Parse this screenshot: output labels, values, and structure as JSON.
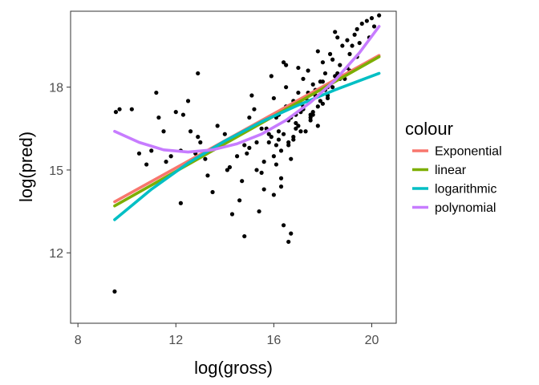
{
  "chart_data": {
    "type": "scatter",
    "xlabel": "log(gross)",
    "ylabel": "log(pred)",
    "xlim": [
      7.7,
      21.0
    ],
    "ylim": [
      9.45,
      20.75
    ],
    "x_ticks": [
      8,
      12,
      16,
      20
    ],
    "y_ticks": [
      12,
      15,
      18
    ],
    "x_tick_labels": [
      "8",
      "12",
      "16",
      "20"
    ],
    "y_tick_labels": [
      "12",
      "15",
      "18"
    ],
    "grid": false,
    "legend": {
      "title": "colour",
      "position": "right",
      "entries": [
        {
          "label": "Exponential",
          "color": "#F8766D"
        },
        {
          "label": "linear",
          "color": "#7CAE00"
        },
        {
          "label": "logarithmic",
          "color": "#00BFC4"
        },
        {
          "label": "polynomial",
          "color": "#C77CFF"
        }
      ]
    },
    "lines": [
      {
        "name": "Exponential",
        "color": "#F8766D",
        "x": [
          9.5,
          20.3
        ],
        "y": [
          13.85,
          19.15
        ]
      },
      {
        "name": "linear",
        "color": "#7CAE00",
        "x": [
          9.5,
          20.3
        ],
        "y": [
          13.7,
          19.1
        ]
      },
      {
        "name": "logarithmic",
        "color": "#00BFC4",
        "x": [
          9.5,
          11,
          12.5,
          14,
          15.5,
          17,
          18.5,
          20.3
        ],
        "y": [
          13.2,
          14.3,
          15.25,
          16.05,
          16.75,
          17.35,
          17.9,
          18.5
        ]
      },
      {
        "name": "polynomial",
        "color": "#C77CFF",
        "x": [
          9.5,
          10.5,
          11.5,
          12.5,
          13.5,
          14.5,
          15.5,
          16.5,
          17.5,
          18.5,
          19.5,
          20.3
        ],
        "y": [
          16.4,
          16.0,
          15.73,
          15.65,
          15.73,
          15.95,
          16.3,
          16.8,
          17.45,
          18.25,
          19.25,
          20.2
        ]
      }
    ],
    "scatter_points": {
      "color": "#000000",
      "x": [
        9.5,
        9.55,
        9.7,
        10.2,
        10.5,
        10.8,
        11.0,
        11.2,
        11.3,
        11.5,
        11.6,
        11.8,
        12.0,
        12.2,
        12.3,
        12.5,
        12.8,
        13.0,
        13.2,
        12.9,
        12.2,
        12.6,
        13.5,
        13.3,
        12.9,
        13.7,
        14.0,
        14.2,
        14.6,
        14.8,
        14.3,
        14.9,
        15.0,
        15.2,
        15.3,
        15.5,
        15.6,
        15.8,
        15.1,
        14.7,
        15.4,
        15.9,
        16.0,
        16.1,
        16.2,
        16.0,
        15.9,
        16.3,
        16.4,
        16.5,
        16.6,
        16.7,
        16.5,
        16.4,
        16.6,
        16.8,
        16.9,
        17.0,
        16.7,
        16.5,
        16.3,
        16.6,
        16.9,
        17.1,
        17.2,
        17.3,
        17.0,
        17.2,
        17.4,
        17.5,
        17.6,
        17.3,
        17.7,
        17.8,
        17.9,
        18.0,
        17.5,
        17.8,
        18.1,
        18.2,
        18.3,
        18.0,
        18.4,
        18.5,
        18.6,
        18.2,
        18.7,
        18.8,
        18.9,
        19.0,
        19.1,
        18.5,
        19.2,
        19.3,
        19.4,
        19.5,
        19.6,
        19.8,
        19.9,
        20.0,
        20.1,
        20.3,
        15.7,
        16.1,
        16.4,
        17.1,
        15.0,
        14.5,
        14.1,
        16.2,
        17.4,
        18.1,
        17.8,
        16.8,
        16.3,
        15.6,
        15.3,
        14.8,
        17.6,
        18.4,
        18.7,
        19.1,
        17.0,
        16.6,
        17.3,
        17.9,
        18.3,
        16.9,
        16.2,
        15.8,
        17.2,
        17.7,
        18.0,
        18.6,
        19.0,
        19.4,
        17.5,
        16.0,
        16.7,
        17.1,
        17.6,
        18.2,
        16.4,
        15.5,
        16.1,
        16.8,
        17.4,
        18.8
      ],
      "y": [
        10.6,
        17.1,
        17.2,
        17.2,
        15.6,
        15.2,
        15.7,
        17.8,
        16.9,
        16.4,
        15.3,
        15.5,
        17.1,
        13.8,
        17.0,
        17.5,
        15.6,
        16.0,
        15.4,
        18.5,
        15.7,
        16.4,
        14.2,
        14.8,
        16.2,
        16.6,
        16.3,
        15.1,
        13.9,
        12.6,
        13.4,
        15.6,
        16.9,
        17.2,
        15.0,
        16.5,
        14.3,
        16.0,
        17.7,
        14.6,
        13.5,
        16.2,
        17.6,
        15.9,
        17.0,
        14.1,
        18.4,
        14.7,
        16.3,
        17.3,
        16.8,
        15.4,
        18.0,
        13.0,
        12.4,
        17.5,
        16.5,
        17.8,
        12.7,
        18.8,
        14.4,
        15.9,
        16.7,
        17.1,
        18.3,
        16.4,
        18.7,
        17.2,
        18.6,
        16.9,
        18.1,
        17.6,
        17.9,
        16.6,
        18.2,
        18.9,
        17.0,
        19.3,
        18.5,
        18.0,
        19.2,
        17.4,
        19.0,
        18.4,
        19.8,
        17.7,
        18.8,
        19.5,
        18.3,
        19.7,
        19.2,
        20.0,
        19.5,
        19.9,
        20.1,
        19.6,
        20.3,
        20.4,
        19.8,
        20.5,
        20.2,
        20.6,
        16.5,
        16.9,
        17.2,
        17.4,
        15.8,
        15.5,
        15.0,
        16.1,
        17.8,
        17.9,
        17.3,
        16.2,
        15.7,
        15.3,
        16.0,
        15.9,
        17.1,
        18.0,
        18.3,
        18.6,
        16.6,
        16.0,
        17.6,
        17.5,
        18.1,
        17.0,
        16.4,
        16.3,
        17.3,
        17.7,
        18.2,
        18.5,
        18.7,
        19.1,
        16.8,
        15.5,
        16.9,
        16.4,
        17.0,
        17.6,
        18.9,
        14.9,
        15.2,
        16.1,
        17.5,
        18.4
      ]
    }
  }
}
